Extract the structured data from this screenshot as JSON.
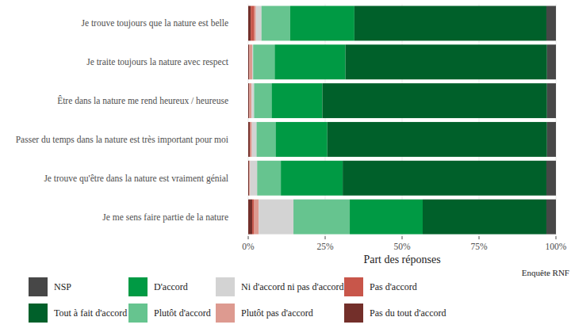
{
  "chart_data": {
    "type": "bar",
    "orientation": "horizontal",
    "stacked": true,
    "grid": true,
    "legend": "bottom",
    "x_label": "Part des réponses",
    "caption": "Enquête RNF",
    "categories": [
      "Je trouve toujours que la nature est belle",
      "Je traite toujours la nature avec respect",
      "Être dans la nature me rend heureux / heureuse",
      "Passer du temps dans la nature est très important pour moi",
      "Je trouve qu'être dans la nature est vraiment génial",
      "Je me sens faire partie de la nature"
    ],
    "xlim": [
      0,
      100
    ],
    "xticks": [
      {
        "value": 0,
        "label": "0%"
      },
      {
        "value": 25,
        "label": "25%"
      },
      {
        "value": 50,
        "label": "50%"
      },
      {
        "value": 75,
        "label": "75%"
      },
      {
        "value": 100,
        "label": "100%"
      }
    ],
    "series": [
      {
        "name": "NSP",
        "color": "#474747",
        "values": [
          3.1,
          2.9,
          2.9,
          2.9,
          3.1,
          3.1
        ]
      },
      {
        "name": "Tout à fait d'accord",
        "color": "#00602a",
        "values": [
          62.4,
          65.5,
          73.0,
          71.4,
          66.2,
          40.2
        ]
      },
      {
        "name": "D'accord",
        "color": "#009a44",
        "values": [
          20.9,
          23.0,
          16.5,
          16.8,
          20.1,
          23.7
        ]
      },
      {
        "name": "Plutôt d'accord",
        "color": "#66c48f",
        "values": [
          9.3,
          7.0,
          5.7,
          6.2,
          7.7,
          18.3
        ]
      },
      {
        "name": "Ni d'accord ni pas d'accord",
        "color": "#d3d3d3",
        "values": [
          1.8,
          0.3,
          0.8,
          1.5,
          2.3,
          11.3
        ]
      },
      {
        "name": "Plutôt pas d'accord",
        "color": "#dd9a90",
        "values": [
          0.5,
          1.0,
          0.8,
          0.5,
          0.3,
          1.6
        ]
      },
      {
        "name": "Pas d'accord",
        "color": "#c8564a",
        "values": [
          1.2,
          0,
          0,
          0.2,
          0,
          0.5
        ]
      },
      {
        "name": "Pas du tout d'accord",
        "color": "#732f2a",
        "values": [
          0.8,
          0.3,
          0.3,
          0.5,
          0.3,
          1.3
        ]
      }
    ]
  }
}
